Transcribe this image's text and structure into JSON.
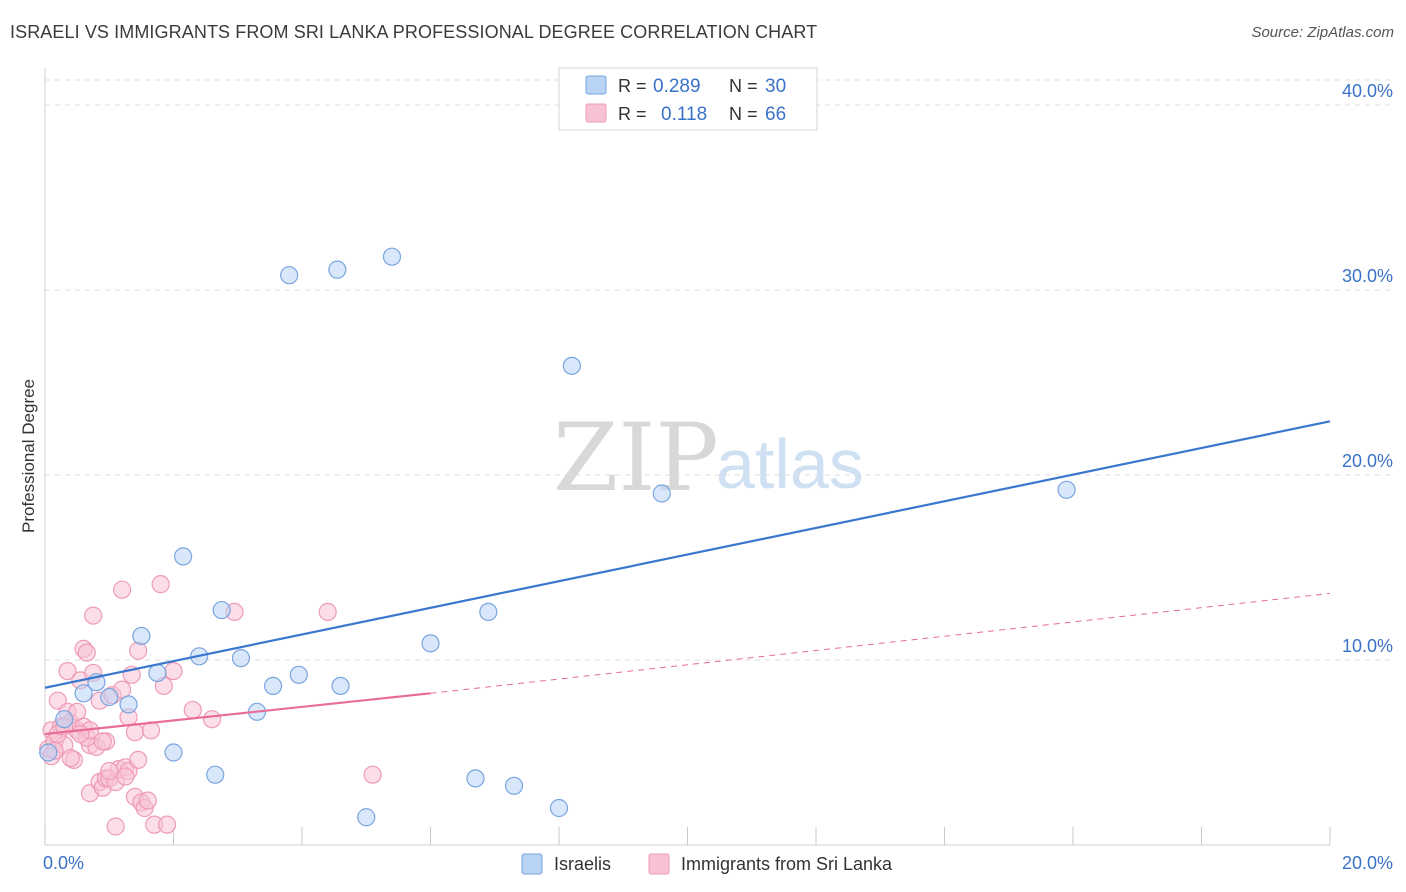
{
  "title": "ISRAELI VS IMMIGRANTS FROM SRI LANKA PROFESSIONAL DEGREE CORRELATION CHART",
  "source": "Source: ZipAtlas.com",
  "watermark": {
    "zip": "ZIP",
    "atlas": "atlas"
  },
  "colors": {
    "blue": "#3a78d0",
    "blue_fill": "#b9d3f5",
    "blue_stroke": "#7aa5df",
    "pink": "#e86c9a",
    "pink_fill": "#f7c3d4",
    "pink_stroke": "#ee9bb8",
    "axis_label": "#3a72c8",
    "grid": "#dedede"
  },
  "legend": [
    {
      "r_label": "R =",
      "r_value": "0.289",
      "n_label": "N =",
      "n_value": "30"
    },
    {
      "r_label": "R =",
      "r_value": "0.118",
      "n_label": "N =",
      "n_value": "66"
    }
  ],
  "bottom_legend": [
    "Israelis",
    "Immigrants from Sri Lanka"
  ],
  "chart_data": {
    "type": "scatter",
    "title": "ISRAELI VS IMMIGRANTS FROM SRI LANKA PROFESSIONAL DEGREE CORRELATION CHART",
    "xlabel": "",
    "ylabel": "Professional Degree",
    "xlim": [
      0,
      20
    ],
    "ylim": [
      0,
      42
    ],
    "x_tick_labels": [
      "0.0%",
      "20.0%"
    ],
    "y_ticks": [
      10,
      20,
      30,
      40
    ],
    "y_tick_labels": [
      "10.0%",
      "20.0%",
      "30.0%",
      "40.0%"
    ],
    "grid": true,
    "series": [
      {
        "name": "Israelis",
        "r": 0.289,
        "n": 30,
        "trend": {
          "x": [
            0,
            20
          ],
          "y": [
            8.5,
            22.9
          ],
          "style": "solid"
        },
        "points": [
          [
            0.05,
            5.0
          ],
          [
            0.3,
            6.8
          ],
          [
            0.6,
            8.2
          ],
          [
            0.8,
            8.8
          ],
          [
            1.0,
            8.0
          ],
          [
            1.3,
            7.6
          ],
          [
            1.5,
            11.3
          ],
          [
            1.75,
            9.3
          ],
          [
            2.0,
            5.0
          ],
          [
            2.15,
            15.6
          ],
          [
            2.4,
            10.2
          ],
          [
            2.65,
            3.8
          ],
          [
            2.75,
            12.7
          ],
          [
            3.05,
            10.1
          ],
          [
            3.3,
            7.2
          ],
          [
            3.55,
            8.6
          ],
          [
            3.8,
            30.8
          ],
          [
            3.95,
            9.2
          ],
          [
            4.55,
            31.1
          ],
          [
            4.6,
            8.6
          ],
          [
            5.0,
            1.5
          ],
          [
            5.4,
            31.8
          ],
          [
            6.0,
            10.9
          ],
          [
            6.7,
            3.6
          ],
          [
            6.9,
            12.6
          ],
          [
            7.3,
            3.2
          ],
          [
            8.0,
            2.0
          ],
          [
            8.2,
            25.9
          ],
          [
            9.6,
            19.0
          ],
          [
            15.9,
            19.2
          ]
        ]
      },
      {
        "name": "Immigrants from Sri Lanka",
        "r": 0.118,
        "n": 66,
        "trend": {
          "x": [
            0,
            6
          ],
          "y": [
            6.0,
            8.2
          ],
          "style": "solid"
        },
        "trend_extension": {
          "x": [
            6,
            20
          ],
          "y": [
            8.2,
            13.6
          ],
          "style": "dashed"
        },
        "points": [
          [
            0.05,
            5.2
          ],
          [
            0.1,
            6.2
          ],
          [
            0.1,
            4.8
          ],
          [
            0.15,
            5.6
          ],
          [
            0.2,
            7.8
          ],
          [
            0.25,
            6.4
          ],
          [
            0.3,
            5.4
          ],
          [
            0.35,
            7.2
          ],
          [
            0.35,
            9.4
          ],
          [
            0.4,
            6.6
          ],
          [
            0.45,
            4.6
          ],
          [
            0.5,
            6.2
          ],
          [
            0.55,
            8.9
          ],
          [
            0.6,
            6.4
          ],
          [
            0.6,
            10.6
          ],
          [
            0.65,
            10.4
          ],
          [
            0.7,
            2.8
          ],
          [
            0.7,
            5.4
          ],
          [
            0.75,
            12.4
          ],
          [
            0.75,
            9.3
          ],
          [
            0.8,
            5.3
          ],
          [
            0.85,
            3.4
          ],
          [
            0.85,
            7.8
          ],
          [
            0.9,
            3.1
          ],
          [
            0.95,
            5.6
          ],
          [
            0.95,
            3.6
          ],
          [
            1.0,
            3.6
          ],
          [
            1.05,
            8.1
          ],
          [
            1.1,
            3.4
          ],
          [
            1.1,
            1.0
          ],
          [
            1.15,
            4.1
          ],
          [
            1.2,
            13.8
          ],
          [
            1.2,
            8.4
          ],
          [
            1.25,
            4.2
          ],
          [
            1.3,
            6.9
          ],
          [
            1.3,
            4.0
          ],
          [
            1.35,
            9.2
          ],
          [
            1.4,
            2.6
          ],
          [
            1.4,
            6.1
          ],
          [
            1.45,
            4.6
          ],
          [
            1.45,
            10.5
          ],
          [
            1.5,
            2.3
          ],
          [
            1.55,
            2.0
          ],
          [
            1.6,
            2.4
          ],
          [
            1.65,
            6.2
          ],
          [
            1.7,
            1.1
          ],
          [
            1.8,
            14.1
          ],
          [
            1.85,
            8.6
          ],
          [
            1.9,
            1.1
          ],
          [
            2.0,
            9.4
          ],
          [
            2.3,
            7.3
          ],
          [
            2.6,
            6.8
          ],
          [
            2.95,
            12.6
          ],
          [
            4.4,
            12.6
          ],
          [
            5.1,
            3.8
          ],
          [
            0.2,
            6.0
          ],
          [
            0.3,
            6.4
          ],
          [
            0.5,
            7.2
          ],
          [
            0.65,
            5.8
          ],
          [
            0.15,
            5.1
          ],
          [
            0.4,
            4.7
          ],
          [
            0.9,
            5.6
          ],
          [
            1.0,
            4.0
          ],
          [
            1.25,
            3.7
          ],
          [
            0.7,
            6.2
          ],
          [
            0.55,
            6.0
          ]
        ]
      }
    ]
  }
}
